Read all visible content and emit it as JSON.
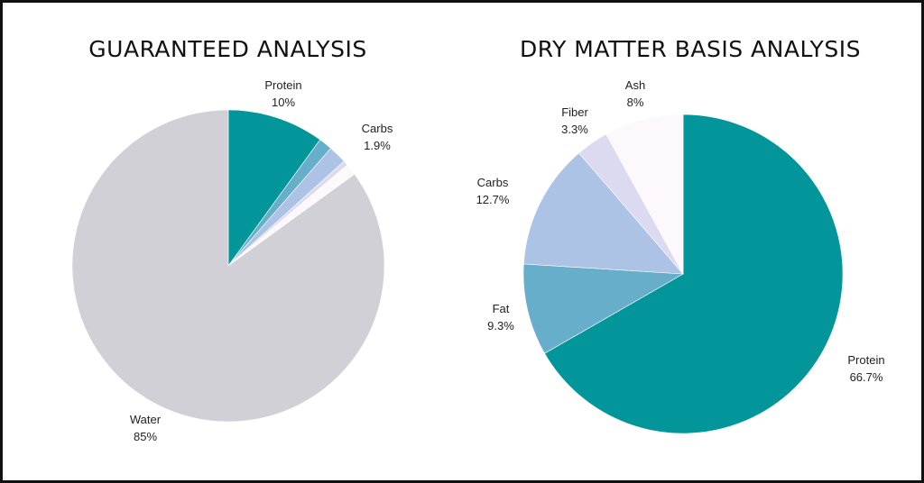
{
  "colors": {
    "protein": "#02969b",
    "fat": "#67aecb",
    "carbs": "#adc3e6",
    "fiber": "#dcdaf0",
    "ash": "#fdf8fc",
    "water": "#d1d0d7"
  },
  "chart_data": [
    {
      "type": "pie",
      "title": "GUARANTEED ANALYSIS",
      "slices": [
        {
          "label": "Protein",
          "value_label": "10%",
          "value": 10,
          "color_key": "protein"
        },
        {
          "label": "",
          "value_label": "",
          "value": 1.4,
          "color_key": "fat"
        },
        {
          "label": "Carbs",
          "value_label": "1.9%",
          "value": 1.9,
          "color_key": "carbs"
        },
        {
          "label": "",
          "value_label": "",
          "value": 0.5,
          "color_key": "fiber"
        },
        {
          "label": "",
          "value_label": "",
          "value": 1.2,
          "color_key": "ash"
        },
        {
          "label": "Water",
          "value_label": "85%",
          "value": 85,
          "color_key": "water"
        }
      ]
    },
    {
      "type": "pie",
      "title": "DRY MATTER BASIS ANALYSIS",
      "slices": [
        {
          "label": "Protein",
          "value_label": "66.7%",
          "value": 66.7,
          "color_key": "protein"
        },
        {
          "label": "Fat",
          "value_label": "9.3%",
          "value": 9.3,
          "color_key": "fat"
        },
        {
          "label": "Carbs",
          "value_label": "12.7%",
          "value": 12.7,
          "color_key": "carbs"
        },
        {
          "label": "Fiber",
          "value_label": "3.3%",
          "value": 3.3,
          "color_key": "fiber"
        },
        {
          "label": "Ash",
          "value_label": "8%",
          "value": 8,
          "color_key": "ash"
        }
      ]
    }
  ]
}
